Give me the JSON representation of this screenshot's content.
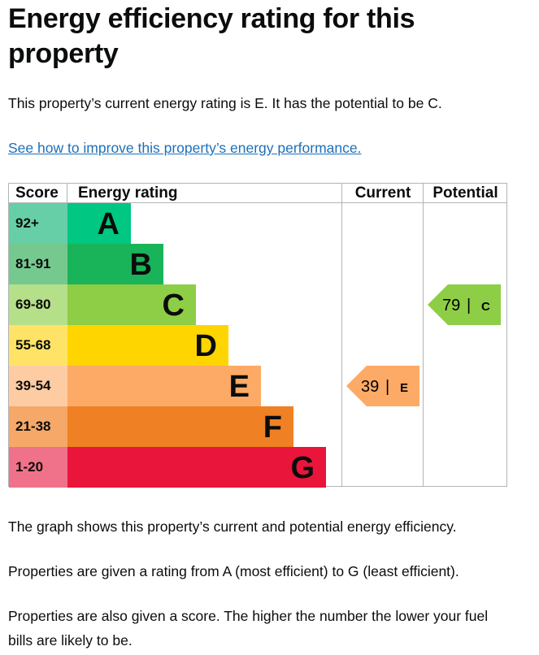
{
  "title": "Energy efficiency rating for this property",
  "intro": "This property’s current energy rating is E. It has the potential to be C.",
  "link": "See how to improve this property’s energy performance.",
  "table": {
    "headers": [
      "Score",
      "Energy rating",
      "Current",
      "Potential"
    ],
    "rows": [
      {
        "score": "92+",
        "band": "A"
      },
      {
        "score": "81-91",
        "band": "B"
      },
      {
        "score": "69-80",
        "band": "C"
      },
      {
        "score": "55-68",
        "band": "D"
      },
      {
        "score": "39-54",
        "band": "E"
      },
      {
        "score": "21-38",
        "band": "F"
      },
      {
        "score": "1-20",
        "band": "G"
      }
    ]
  },
  "current": {
    "score": 39,
    "separator": "|",
    "band": "E"
  },
  "potential": {
    "score": 79,
    "separator": "|",
    "band": "C"
  },
  "paragraphs": [
    "The graph shows this property’s current and potential energy efficiency.",
    "Properties are given a rating from A (most efficient) to G (least efficient).",
    "Properties are also given a score. The higher the number the lower your fuel bills are likely to be."
  ]
}
